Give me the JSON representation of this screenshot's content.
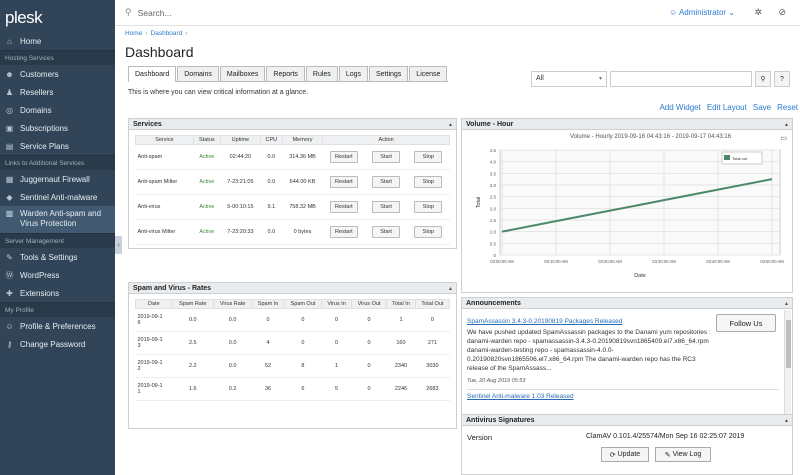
{
  "app": {
    "logo": "plesk"
  },
  "sidebar": {
    "items": [
      {
        "label": "Home",
        "icon": "home-icon",
        "glyph": "⌂"
      },
      {
        "section": "Hosting Services"
      },
      {
        "label": "Customers",
        "icon": "user-icon",
        "glyph": "☻"
      },
      {
        "label": "Resellers",
        "icon": "resellers-icon",
        "glyph": "♟"
      },
      {
        "label": "Domains",
        "icon": "globe-icon",
        "glyph": "◎"
      },
      {
        "label": "Subscriptions",
        "icon": "subscriptions-icon",
        "glyph": "▣"
      },
      {
        "label": "Service Plans",
        "icon": "service-plans-icon",
        "glyph": "▤"
      },
      {
        "section": "Links to Additional Services"
      },
      {
        "label": "Juggernaut Firewall",
        "icon": "firewall-icon",
        "glyph": "▦"
      },
      {
        "label": "Sentinel Anti-malware",
        "icon": "shield-icon",
        "glyph": "◆"
      },
      {
        "label": "Warden Anti-spam and Virus Protection",
        "icon": "warden-icon",
        "glyph": "▩",
        "active": true
      },
      {
        "section": "Server Management"
      },
      {
        "label": "Tools & Settings",
        "icon": "tools-icon",
        "glyph": "✎"
      },
      {
        "label": "WordPress",
        "icon": "wordpress-icon",
        "glyph": "Ⓦ"
      },
      {
        "label": "Extensions",
        "icon": "extensions-icon",
        "glyph": "✚"
      },
      {
        "section": "My Profile"
      },
      {
        "label": "Profile & Preferences",
        "icon": "profile-icon",
        "glyph": "☺"
      },
      {
        "label": "Change Password",
        "icon": "key-icon",
        "glyph": "⚷"
      }
    ]
  },
  "topbar": {
    "search_placeholder": "Search...",
    "user": "Administrator",
    "user_caret": "⌄"
  },
  "breadcrumb": [
    "Home",
    "Dashboard"
  ],
  "breadcrumb_sep": "›",
  "page_title": "Dashboard",
  "filter": {
    "selected": "All",
    "caret": "▾",
    "search_btn": "⚲",
    "help_btn": "?"
  },
  "tabs": [
    "Dashboard",
    "Domains",
    "Mailboxes",
    "Reports",
    "Rules",
    "Logs",
    "Settings",
    "License"
  ],
  "active_tab": 0,
  "intro": "This is where you can view critical information at a glance.",
  "actions": [
    "Add Widget",
    "Edit Layout",
    "Save",
    "Reset"
  ],
  "services": {
    "title": "Services",
    "columns": [
      "Service",
      "Status",
      "Uptime",
      "CPU",
      "Memory",
      "Action"
    ],
    "buttons": [
      "Restart",
      "Start",
      "Stop"
    ],
    "rows": [
      {
        "service": "Anti-spam",
        "status": "Active",
        "uptime": "02:44:20",
        "cpu": "0.0",
        "memory": "314.36 MB"
      },
      {
        "service": "Anti-spam Milter",
        "status": "Active",
        "uptime": "7-23:21:05",
        "cpu": "0.0",
        "memory": "644.00 KB"
      },
      {
        "service": "Anti-virus",
        "status": "Active",
        "uptime": "5-00:10:15",
        "cpu": "9.1",
        "memory": "758.32 MB"
      },
      {
        "service": "Anti-virus Milter",
        "status": "Active",
        "uptime": "7-23:20:33",
        "cpu": "0.0",
        "memory": "0 bytes"
      }
    ]
  },
  "rates": {
    "title": "Spam and Virus - Rates",
    "columns": [
      "Date",
      "Spam Rate",
      "Virus Rate",
      "Spam In",
      "Spam Out",
      "Virus In",
      "Virus Out",
      "Total In",
      "Total Out"
    ],
    "rows": [
      [
        "2019-09-1\n6",
        "0.0",
        "0.0",
        "0",
        "0",
        "0",
        "0",
        "1",
        "0"
      ],
      [
        "2019-09-1\n3",
        "2.5",
        "0.0",
        "4",
        "0",
        "0",
        "0",
        "160",
        "271"
      ],
      [
        "2019-09-1\n2",
        "2.2",
        "0.0",
        "52",
        "8",
        "1",
        "0",
        "2340",
        "3030"
      ],
      [
        "2019-09-1\n1",
        "1.6",
        "0.2",
        "36",
        "6",
        "5",
        "0",
        "2246",
        "2683"
      ]
    ]
  },
  "volume": {
    "title": "Volume - Hour",
    "print_icon": "▭"
  },
  "chart_data": {
    "type": "line",
    "title": "Volume - Hourly 2019-09-16 04:43:16 - 2019-09-17 04:43:16",
    "xlabel": "Date",
    "ylabel": "Total",
    "x": [
      "03:00:00 AM",
      "03:10:00 AM",
      "03:20:00 AM",
      "03:30:00 AM",
      "03:40:00 AM",
      "03:50:00 AM"
    ],
    "ylim": [
      0,
      4.5
    ],
    "yticks": [
      "0",
      "0.5",
      "1.0",
      "1.5",
      "2.0",
      "2.5",
      "3.0",
      "3.5",
      "4.0",
      "4.5"
    ],
    "series": [
      {
        "name": "Total out",
        "color": "#4a8a6a",
        "values": [
          1.0,
          1.45,
          1.9,
          2.35,
          2.8,
          3.25
        ]
      }
    ],
    "grid": true,
    "legend": "top-right"
  },
  "announcements": {
    "title": "Announcements",
    "follow_label": "Follow Us",
    "items": [
      {
        "title": "SpamAssassin 3.4.3-0.20190819 Packages Released",
        "body": "We have pushed updated SpamAssassin packages to the Danami yum repositories : danami-warden repo - spamassassin-3.4.3-0.20190819svn1865409.el7.x86_64.rpm danami-warden-testing repo - spamassassin-4.0.0-0.20190820svn1865506.el7.x86_64.rpm The danami-warden repo has the RC3 release of the SpamAssass...",
        "date": "Tue, 20 Aug 2019 05:53"
      },
      {
        "title": "Sentinel Anti-malware 1.03 Released"
      }
    ]
  },
  "signatures": {
    "title": "Antivirus Signatures",
    "label": "Version",
    "value": "ClamAV 0.101.4/25574/Mon Sep 16 02:25:07 2019",
    "update_label": "Update",
    "view_log_label": "View Log"
  }
}
